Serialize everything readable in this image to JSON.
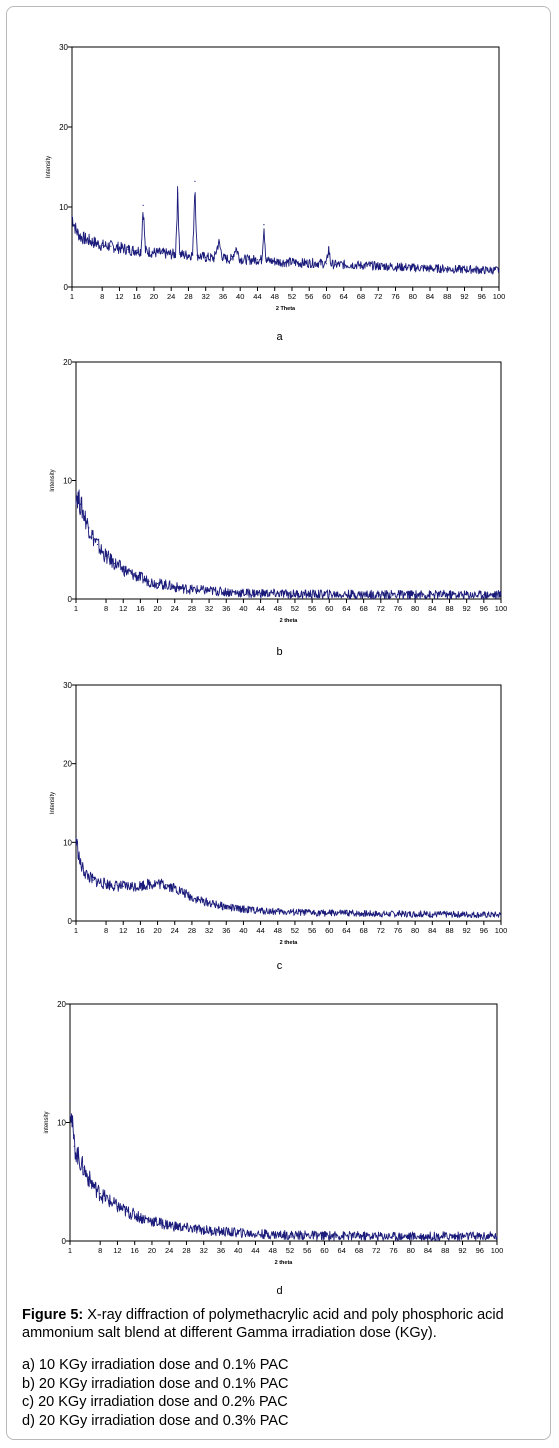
{
  "figure": {
    "caption_lead": "Figure 5:",
    "caption_text": " X-ray diffraction of polymethacrylic acid and poly phosphoric acid ammonium salt blend at different Gamma irradiation dose (KGy).",
    "items": [
      "a) 10 KGy irradiation dose and 0.1% PAC",
      "b) 20 KGy irradiation dose and 0.1% PAC",
      "c) 20 KGy irradiation dose and 0.2% PAC",
      "d) 20 KGy irradiation dose and 0.3% PAC"
    ]
  },
  "chart_data": [
    {
      "id": "a",
      "panel_label": "a",
      "type": "line",
      "xlabel": "2 Theta",
      "ylabel": "Intensity",
      "xticks": [
        "1",
        "8",
        "12",
        "16",
        "20",
        "24",
        "28",
        "32",
        "36",
        "40",
        "44",
        "48",
        "52",
        "56",
        "60",
        "64",
        "68",
        "72",
        "76",
        "80",
        "84",
        "88",
        "92",
        "96",
        "100"
      ],
      "yticks": [
        "0",
        "10",
        "20",
        "30"
      ],
      "ylim": [
        0,
        30
      ],
      "xlim": [
        1,
        100
      ],
      "grid": false,
      "color": "#1a1a7a",
      "series": [
        {
          "x": [
            1,
            2,
            3,
            4,
            5,
            6,
            7,
            8,
            10,
            12,
            14,
            15,
            16,
            17,
            17.5,
            18,
            19,
            20,
            22,
            24,
            25,
            25.5,
            26,
            27,
            28,
            29,
            29.5,
            30,
            31,
            32,
            34,
            35,
            36,
            37,
            38,
            39,
            40,
            42,
            44,
            45,
            45.5,
            46,
            48,
            50,
            52,
            54,
            56,
            58,
            60,
            60.5,
            61,
            62,
            64,
            66,
            68,
            70,
            72,
            74,
            76,
            78,
            80,
            82,
            84,
            86,
            88,
            90,
            92,
            94,
            96,
            98,
            100
          ],
          "y": [
            8.8,
            7.0,
            6.3,
            6.0,
            5.8,
            5.6,
            5.4,
            5.2,
            5.1,
            4.9,
            4.7,
            4.6,
            4.6,
            4.5,
            10.2,
            4.5,
            4.4,
            4.3,
            4.2,
            4.1,
            4.1,
            11.7,
            4.1,
            4.0,
            4.0,
            4.0,
            13.2,
            4.0,
            3.8,
            3.7,
            3.6,
            5.6,
            3.6,
            3.5,
            3.5,
            4.9,
            3.5,
            3.4,
            3.4,
            3.4,
            7.8,
            3.3,
            3.2,
            3.1,
            3.1,
            3.0,
            3.0,
            3.0,
            2.9,
            4.9,
            2.9,
            2.8,
            2.8,
            2.8,
            2.7,
            2.7,
            2.6,
            2.6,
            2.5,
            2.5,
            2.4,
            2.4,
            2.3,
            2.3,
            2.3,
            2.2,
            2.2,
            2.2,
            2.1,
            2.1,
            2.1
          ]
        }
      ]
    },
    {
      "id": "b",
      "panel_label": "b",
      "type": "line",
      "xlabel": "2 theta",
      "ylabel": "Intensity",
      "xticks": [
        "1",
        "8",
        "12",
        "16",
        "20",
        "24",
        "28",
        "32",
        "36",
        "40",
        "44",
        "48",
        "52",
        "56",
        "60",
        "64",
        "68",
        "72",
        "76",
        "80",
        "84",
        "88",
        "92",
        "96",
        "100"
      ],
      "yticks": [
        "0",
        "10",
        "20"
      ],
      "ylim": [
        0,
        20
      ],
      "xlim": [
        1,
        100
      ],
      "grid": false,
      "color": "#1a1a7a",
      "series": [
        {
          "x": [
            1,
            2,
            3,
            4,
            5,
            6,
            7,
            8,
            10,
            12,
            14,
            16,
            18,
            20,
            22,
            24,
            26,
            28,
            30,
            32,
            34,
            36,
            38,
            40,
            44,
            48,
            52,
            56,
            60,
            64,
            68,
            72,
            76,
            80,
            84,
            88,
            92,
            96,
            100
          ],
          "y": [
            9.0,
            8.0,
            7.0,
            6.0,
            5.2,
            4.6,
            4.0,
            3.6,
            3.0,
            2.5,
            2.1,
            1.8,
            1.5,
            1.3,
            1.2,
            1.0,
            0.9,
            0.8,
            0.75,
            0.7,
            0.65,
            0.6,
            0.55,
            0.5,
            0.48,
            0.45,
            0.42,
            0.4,
            0.4,
            0.38,
            0.38,
            0.37,
            0.37,
            0.36,
            0.36,
            0.36,
            0.36,
            0.36,
            0.36
          ]
        }
      ]
    },
    {
      "id": "c",
      "panel_label": "c",
      "type": "line",
      "xlabel": "2 theta",
      "ylabel": "Intensity",
      "xticks": [
        "1",
        "8",
        "12",
        "16",
        "20",
        "24",
        "28",
        "32",
        "36",
        "40",
        "44",
        "48",
        "52",
        "56",
        "60",
        "64",
        "68",
        "72",
        "76",
        "80",
        "84",
        "88",
        "92",
        "96",
        "100"
      ],
      "yticks": [
        "0",
        "10",
        "20",
        "30"
      ],
      "ylim": [
        0,
        30
      ],
      "xlim": [
        1,
        100
      ],
      "grid": false,
      "color": "#1a1a7a",
      "series": [
        {
          "x": [
            1,
            2,
            3,
            4,
            5,
            6,
            8,
            10,
            12,
            14,
            16,
            18,
            20,
            22,
            24,
            26,
            28,
            30,
            32,
            34,
            36,
            38,
            40,
            44,
            48,
            52,
            56,
            60,
            64,
            68,
            72,
            76,
            80,
            84,
            88,
            92,
            96,
            100
          ],
          "y": [
            10.5,
            7.2,
            6.2,
            5.6,
            5.2,
            5.0,
            4.7,
            4.5,
            4.4,
            4.4,
            4.5,
            4.7,
            4.8,
            4.6,
            4.2,
            3.6,
            3.0,
            2.6,
            2.3,
            2.0,
            1.8,
            1.6,
            1.5,
            1.3,
            1.2,
            1.1,
            1.05,
            1.0,
            1.0,
            0.95,
            0.9,
            0.9,
            0.9,
            0.85,
            0.85,
            0.85,
            0.8,
            0.8
          ]
        }
      ]
    },
    {
      "id": "d",
      "panel_label": "d",
      "type": "line",
      "xlabel": "2 theta",
      "ylabel": "intensity",
      "xticks": [
        "1",
        "8",
        "12",
        "16",
        "20",
        "24",
        "28",
        "32",
        "36",
        "40",
        "44",
        "48",
        "52",
        "56",
        "60",
        "64",
        "68",
        "72",
        "76",
        "80",
        "84",
        "88",
        "92",
        "96",
        "100"
      ],
      "yticks": [
        "0",
        "10",
        "20"
      ],
      "ylim": [
        0,
        20
      ],
      "xlim": [
        1,
        100
      ],
      "grid": false,
      "color": "#1a1a7a",
      "series": [
        {
          "x": [
            1,
            2,
            3,
            4,
            5,
            6,
            7,
            8,
            10,
            12,
            14,
            16,
            18,
            20,
            22,
            24,
            26,
            28,
            30,
            32,
            34,
            36,
            38,
            40,
            44,
            48,
            52,
            56,
            60,
            64,
            68,
            72,
            76,
            80,
            84,
            88,
            92,
            96,
            100
          ],
          "y": [
            11.8,
            8.0,
            7.0,
            6.2,
            5.5,
            4.9,
            4.4,
            4.0,
            3.4,
            2.9,
            2.5,
            2.2,
            1.9,
            1.7,
            1.5,
            1.35,
            1.2,
            1.1,
            1.0,
            0.95,
            0.85,
            0.8,
            0.75,
            0.7,
            0.6,
            0.55,
            0.5,
            0.48,
            0.45,
            0.45,
            0.42,
            0.42,
            0.4,
            0.4,
            0.4,
            0.4,
            0.4,
            0.4,
            0.4
          ]
        }
      ]
    }
  ]
}
